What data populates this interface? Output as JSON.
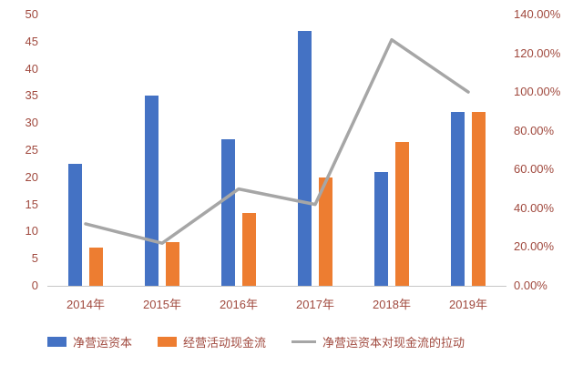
{
  "chart_data": {
    "type": "bar",
    "subtype": "bar+line combo",
    "title": "",
    "categories": [
      "2014年",
      "2015年",
      "2016年",
      "2017年",
      "2018年",
      "2019年"
    ],
    "series": [
      {
        "name": "净营运资本",
        "type": "bar",
        "axis": "left",
        "color": "#4472C4",
        "values": [
          22.5,
          35,
          27,
          47,
          21,
          32
        ]
      },
      {
        "name": "经营活动现金流",
        "type": "bar",
        "axis": "left",
        "color": "#ED7D31",
        "values": [
          7,
          8,
          13.5,
          20,
          26.5,
          32
        ]
      },
      {
        "name": "净营运资本对现金流的拉动",
        "type": "line",
        "axis": "right",
        "color": "#A6A6A6",
        "values": [
          32,
          22,
          50,
          42,
          127,
          100
        ]
      }
    ],
    "left_axis": {
      "min": 0,
      "max": 50,
      "step": 5,
      "ticks": [
        "0",
        "5",
        "10",
        "15",
        "20",
        "25",
        "30",
        "35",
        "40",
        "45",
        "50"
      ]
    },
    "right_axis": {
      "min": 0,
      "max": 140,
      "step": 20,
      "ticks": [
        "0.00%",
        "20.00%",
        "40.00%",
        "60.00%",
        "80.00%",
        "100.00%",
        "120.00%",
        "140.00%"
      ]
    },
    "legend_position": "bottom",
    "grid": false
  },
  "colors": {
    "background": "#ffffff",
    "axis_text": "#a0493e",
    "axis_line": "#c6c6c6",
    "bar_blue": "#4472C4",
    "bar_orange": "#ED7D31",
    "line_gray": "#A6A6A6"
  }
}
